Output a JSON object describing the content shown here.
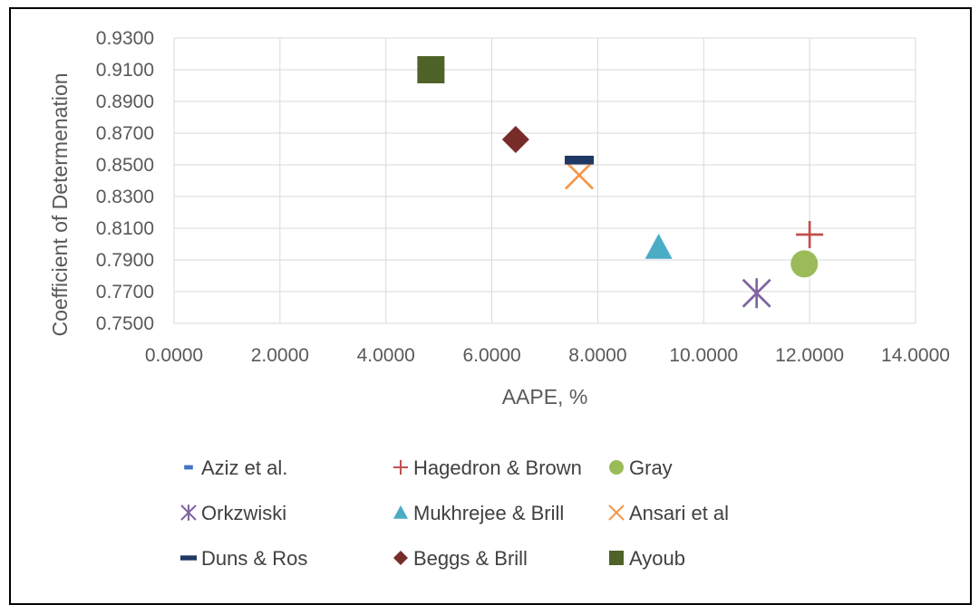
{
  "chart_data": {
    "type": "scatter",
    "title": "",
    "xlabel": "AAPE, %",
    "ylabel": "Coefficient of Determenation",
    "xlim": [
      0,
      14
    ],
    "ylim": [
      0.75,
      0.93
    ],
    "x_ticks": [
      "0.0000",
      "2.0000",
      "4.0000",
      "6.0000",
      "8.0000",
      "10.0000",
      "12.0000",
      "14.0000"
    ],
    "y_ticks": [
      "0.7500",
      "0.7700",
      "0.7900",
      "0.8100",
      "0.8300",
      "0.8500",
      "0.8700",
      "0.8900",
      "0.9100",
      "0.9300"
    ],
    "grid": true,
    "legend_position": "bottom",
    "series": [
      {
        "name": "Aziz et al.",
        "marker": "dash-small",
        "color": "#4472c4",
        "points": []
      },
      {
        "name": "Hagedron & Brown",
        "marker": "plus",
        "color": "#c0504d",
        "points": [
          [
            12.0,
            0.806
          ]
        ]
      },
      {
        "name": "Gray",
        "marker": "circle",
        "color": "#9bbb59",
        "points": [
          [
            11.9,
            0.7875
          ]
        ]
      },
      {
        "name": "Orkzwiski",
        "marker": "star",
        "color": "#8064a2",
        "points": [
          [
            11.0,
            0.769
          ]
        ]
      },
      {
        "name": "Mukhrejee & Brill",
        "marker": "triangle",
        "color": "#4bacc6",
        "points": [
          [
            9.15,
            0.798
          ]
        ]
      },
      {
        "name": "Ansari et al",
        "marker": "x",
        "color": "#f79646",
        "points": [
          [
            7.65,
            0.8435
          ]
        ]
      },
      {
        "name": "Duns & Ros",
        "marker": "dash",
        "color": "#1f3864",
        "points": [
          [
            7.65,
            0.853
          ]
        ]
      },
      {
        "name": "Beggs & Brill",
        "marker": "diamond",
        "color": "#772c2a",
        "points": [
          [
            6.45,
            0.866
          ]
        ]
      },
      {
        "name": "Ayoub",
        "marker": "square",
        "color": "#4f6228",
        "points": [
          [
            4.85,
            0.91
          ]
        ]
      }
    ]
  }
}
